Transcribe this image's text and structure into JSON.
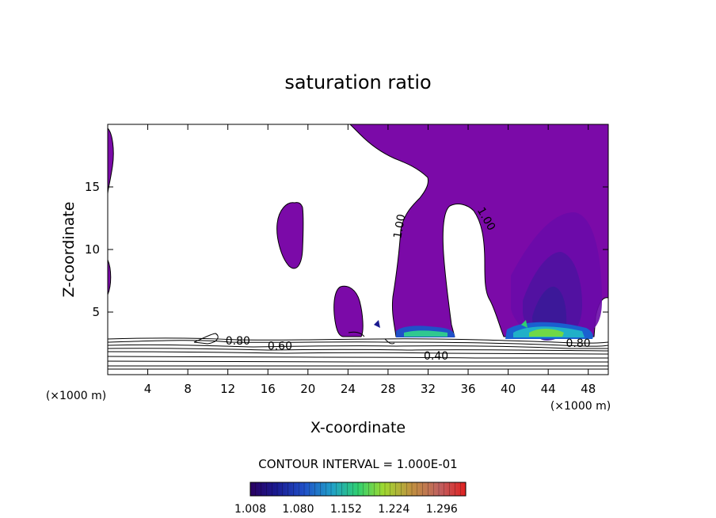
{
  "chart_data": {
    "type": "contour",
    "title": "saturation ratio",
    "xlabel": "X-coordinate",
    "ylabel": "Z-coordinate",
    "x_unit_left": "(×1000 m)",
    "x_unit_right": "(×1000 m)",
    "xlim": [
      0,
      50
    ],
    "ylim": [
      0,
      20
    ],
    "x_ticks": [
      4,
      8,
      12,
      16,
      20,
      24,
      28,
      32,
      36,
      40,
      44,
      48
    ],
    "y_ticks": [
      5,
      10,
      15
    ],
    "contour_interval_text": "CONTOUR INTERVAL = 1.000E-01",
    "contour_labels": [
      {
        "text": "0.80",
        "x": 13.0,
        "z": 2.4
      },
      {
        "text": "0.60",
        "x": 17.2,
        "z": 2.0
      },
      {
        "text": "0.40",
        "x": 32.8,
        "z": 1.2
      },
      {
        "text": "1.00",
        "x": 29.5,
        "z": 11.8
      },
      {
        "text": "1.00",
        "x": 37.5,
        "z": 12.3
      },
      {
        "text": "0.80",
        "x": 47.0,
        "z": 2.2
      }
    ],
    "supersaturation_fill": "#7b0aa8",
    "colorbar": {
      "min": 1.008,
      "max": 1.332,
      "ticks": [
        "1.008",
        "1.080",
        "1.152",
        "1.224",
        "1.296"
      ],
      "colors": [
        "#2a0060",
        "#1a1a90",
        "#2050c8",
        "#20a0c8",
        "#30d070",
        "#a0d830",
        "#c09040",
        "#c06060",
        "#e02020"
      ]
    }
  }
}
